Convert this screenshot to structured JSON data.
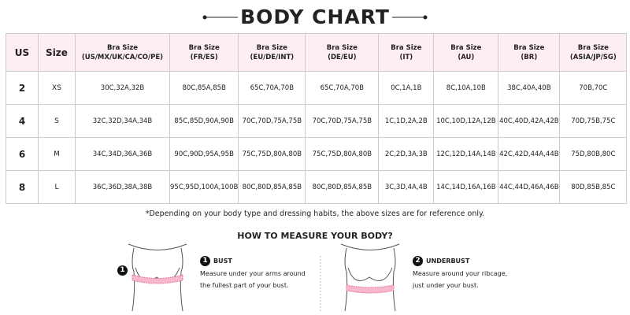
{
  "header": {
    "title": "BODY CHART"
  },
  "table": {
    "headers": [
      "US",
      "Size",
      [
        "Bra Size",
        "(US/MX/UK/CA/CO/PE)"
      ],
      [
        "Bra Size",
        "(FR/ES)"
      ],
      [
        "Bra Size",
        "(EU/DE/INT)"
      ],
      [
        "Bra Size",
        "(DE/EU)"
      ],
      [
        "Bra Size",
        "(IT)"
      ],
      [
        "Bra Size",
        "(AU)"
      ],
      [
        "Bra Size",
        "(BR)"
      ],
      [
        "Bra Size",
        "(ASIA/JP/SG)"
      ]
    ],
    "rows": [
      [
        "2",
        "XS",
        "30C,32A,32B",
        "80C,85A,85B",
        "65C,70A,70B",
        "65C,70A,70B",
        "0C,1A,1B",
        "8C,10A,10B",
        "38C,40A,40B",
        "70B,70C"
      ],
      [
        "4",
        "S",
        "32C,32D,34A,34B",
        "85C,85D,90A,90B",
        "70C,70D,75A,75B",
        "70C,70D,75A,75B",
        "1C,1D,2A,2B",
        "10C,10D,12A,12B",
        "40C,40D,42A,42B",
        "70D,75B,75C"
      ],
      [
        "6",
        "M",
        "34C,34D,36A,36B",
        "90C,90D,95A,95B",
        "75C,75D,80A,80B",
        "75C,75D,80A,80B",
        "2C,2D,3A,3B",
        "12C,12D,14A,14B",
        "42C,42D,44A,44B",
        "75D,80B,80C"
      ],
      [
        "8",
        "L",
        "36C,36D,38A,38B",
        "95C,95D,100A,100B",
        "80C,80D,85A,85B",
        "80C,80D,85A,85B",
        "3C,3D,4A,4B",
        "14C,14D,16A,16B",
        "44C,44D,46A,46B",
        "80D,85B,85C"
      ]
    ],
    "note": "*Depending on your body type and dressing habits, the above sizes are for reference only."
  },
  "measure": {
    "title": "HOW TO MEASURE YOUR BODY?",
    "items": [
      {
        "number": "1",
        "title": "BUST",
        "lines": [
          "Measure under your arms around",
          "the fullest part of your bust."
        ]
      },
      {
        "number": "2",
        "title": "UNDERBUST",
        "lines": [
          "Measure around your ribcage,",
          "just under your bust."
        ]
      }
    ]
  }
}
